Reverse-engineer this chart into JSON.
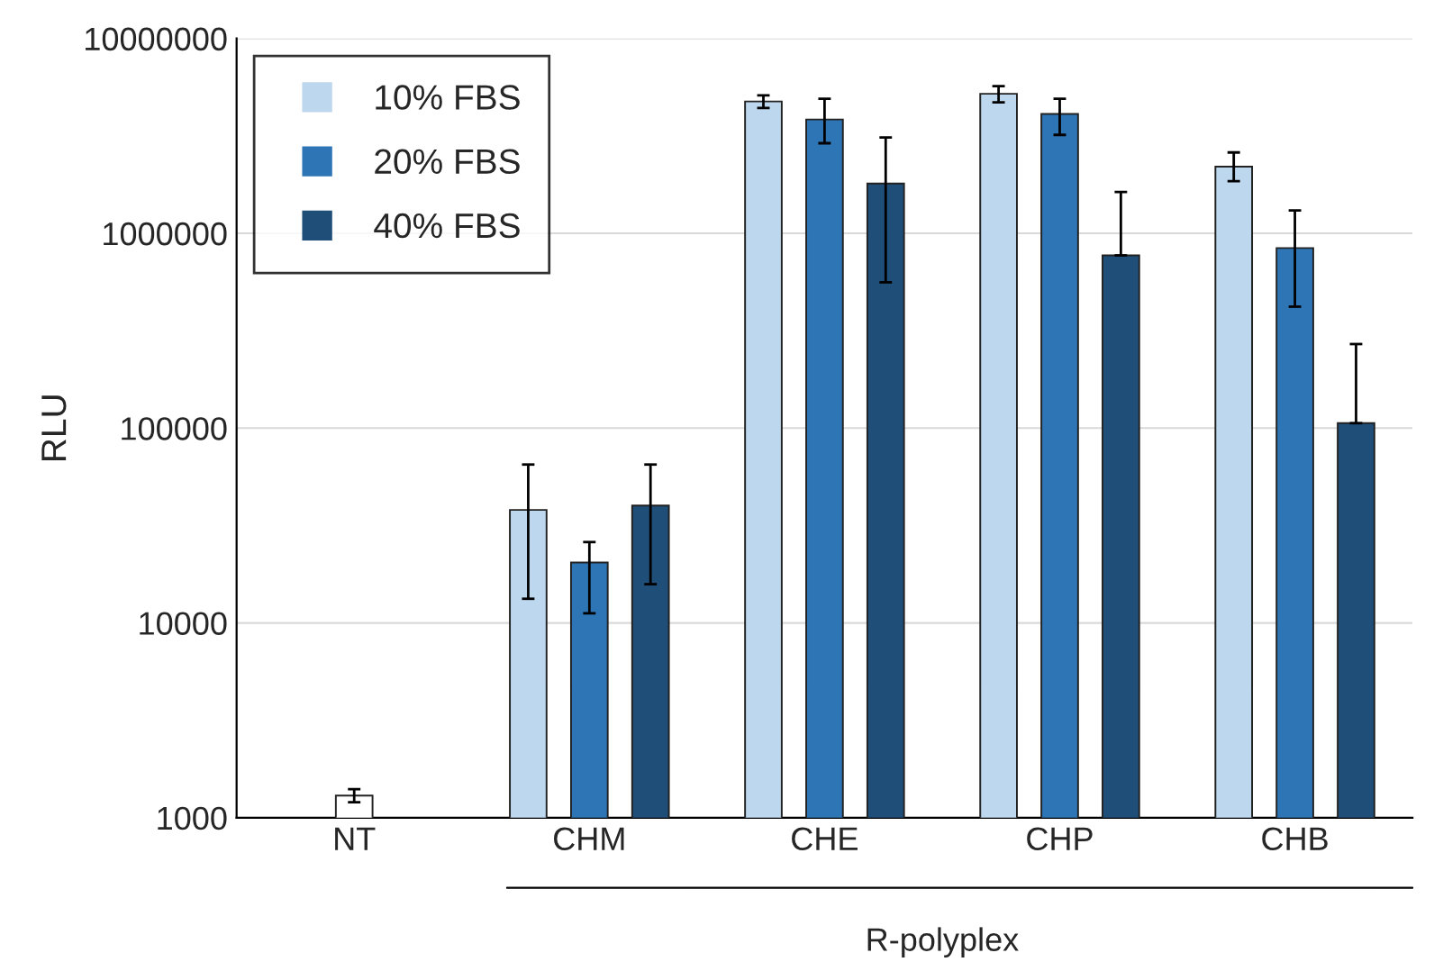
{
  "chart_data": {
    "type": "bar",
    "ylabel": "RLU",
    "log": "y",
    "categories": [
      "NT",
      "CHM",
      "CHE",
      "CHP",
      "CHB"
    ],
    "series": [
      {
        "color": "#ffffff",
        "values": [
          1300,
          null,
          null,
          null,
          null
        ],
        "errors": [
          [
            1200,
            1400
          ],
          null,
          null,
          null,
          null
        ]
      },
      {
        "name": "10% FBS",
        "color": "#bdd7ee",
        "values": [
          null,
          38000,
          4750000,
          5200000,
          2200000
        ],
        "errors": [
          null,
          [
            13300,
            65000
          ],
          [
            4400000,
            5100000
          ],
          [
            4700000,
            5700000
          ],
          [
            1850000,
            2600000
          ]
        ]
      },
      {
        "name": "20% FBS",
        "color": "#2e75b6",
        "values": [
          null,
          20400,
          3840000,
          4100000,
          840000
        ],
        "errors": [
          null,
          [
            11200,
            26000
          ],
          [
            2900000,
            4900000
          ],
          [
            3200000,
            4900000
          ],
          [
            420000,
            1310000
          ]
        ]
      },
      {
        "name": "40% FBS",
        "color": "#1f4e79",
        "values": [
          null,
          40000,
          1800000,
          770000,
          106000
        ],
        "errors": [
          null,
          [
            15800,
            65000
          ],
          [
            560000,
            3100000
          ],
          [
            770000,
            1630000
          ],
          [
            106000,
            270000
          ]
        ]
      }
    ],
    "ylim": [
      1000,
      10000000
    ],
    "yticks": [
      1000,
      10000,
      100000,
      1000000,
      10000000
    ],
    "grid": "y",
    "legend": "top left",
    "annotations": [
      "R-polyplex"
    ]
  }
}
